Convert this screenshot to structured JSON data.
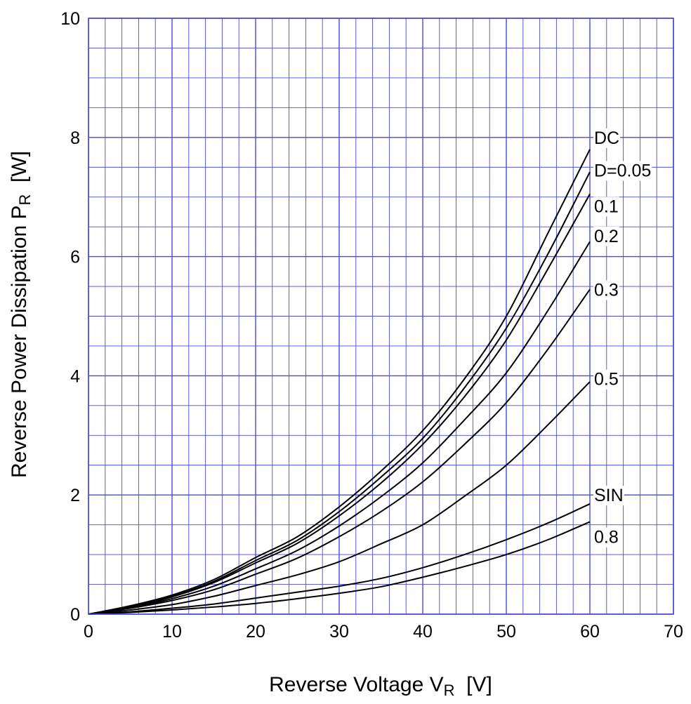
{
  "chart_data": {
    "type": "line",
    "xlabel": {
      "main": "Reverse Voltage  V",
      "sub": "R",
      "unit": "  [V]"
    },
    "ylabel": {
      "main": "Reverse Power Dissipation  P",
      "sub": "R",
      "unit": "  [W]"
    },
    "xlim": [
      0,
      70
    ],
    "ylim": [
      0,
      10
    ],
    "x_major_ticks": [
      "0",
      "10",
      "20",
      "30",
      "40",
      "50",
      "60",
      "70"
    ],
    "y_major_ticks": [
      "0",
      "2",
      "4",
      "6",
      "8",
      "10"
    ],
    "x_minor_step": 2,
    "y_minor_step": 0.5,
    "grid": true,
    "colors": {
      "grid": "#4a4ad8",
      "axes": "#4a4ad8",
      "series": "#000000"
    },
    "x": [
      0,
      5,
      10,
      15,
      20,
      25,
      30,
      35,
      40,
      45,
      50,
      55,
      60
    ],
    "series": [
      {
        "name": "DC",
        "values": [
          0,
          0.14,
          0.32,
          0.58,
          0.95,
          1.3,
          1.8,
          2.4,
          3.08,
          3.95,
          5.0,
          6.4,
          7.8
        ]
      },
      {
        "name": "D=0.05",
        "values": [
          0,
          0.13,
          0.3,
          0.55,
          0.9,
          1.24,
          1.72,
          2.3,
          2.95,
          3.8,
          4.8,
          6.05,
          7.42
        ]
      },
      {
        "name": "0.1",
        "values": [
          0,
          0.12,
          0.29,
          0.53,
          0.86,
          1.19,
          1.65,
          2.2,
          2.85,
          3.65,
          4.6,
          5.8,
          7.05
        ]
      },
      {
        "name": "0.2",
        "values": [
          0,
          0.11,
          0.26,
          0.47,
          0.76,
          1.07,
          1.48,
          1.97,
          2.54,
          3.26,
          4.05,
          5.1,
          6.25
        ]
      },
      {
        "name": "0.3",
        "values": [
          0,
          0.1,
          0.23,
          0.41,
          0.67,
          0.94,
          1.3,
          1.72,
          2.22,
          2.85,
          3.55,
          4.45,
          5.45
        ]
      },
      {
        "name": "0.5",
        "values": [
          0,
          0.07,
          0.16,
          0.3,
          0.48,
          0.66,
          0.88,
          1.18,
          1.5,
          1.98,
          2.5,
          3.18,
          3.9
        ]
      },
      {
        "name": "SIN",
        "values": [
          0,
          0.04,
          0.1,
          0.17,
          0.27,
          0.37,
          0.47,
          0.6,
          0.78,
          1.0,
          1.25,
          1.53,
          1.85
        ]
      },
      {
        "name": "0.8",
        "values": [
          0,
          0.03,
          0.07,
          0.12,
          0.18,
          0.26,
          0.35,
          0.46,
          0.62,
          0.8,
          1.0,
          1.25,
          1.55
        ]
      }
    ]
  }
}
